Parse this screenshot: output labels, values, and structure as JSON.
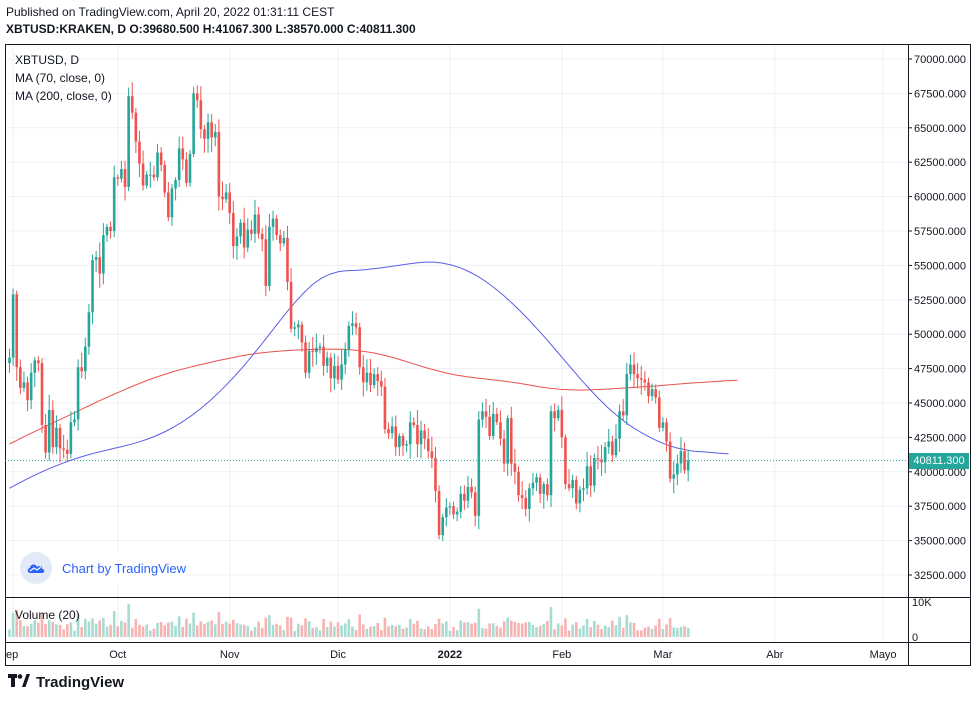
{
  "header": {
    "published": "Published on TradingView.com, April 20, 2022 01:31:11 CEST",
    "symbol": "XBTUSD:KRAKEN, D",
    "o_label": "O:",
    "o_value": "39680.500",
    "h_label": "H:",
    "h_value": "41067.300",
    "l_label": "L:",
    "l_value": "38570.000",
    "c_label": "C:",
    "c_value": "40811.300"
  },
  "legend": {
    "title": "XBTUSD, D",
    "ma70": "MA (70, close, 0)",
    "ma200": "MA (200, close, 0)",
    "volume": "Volume (20)"
  },
  "attribution": "Chart by TradingView",
  "footer_brand": "TradingView",
  "last_price_tag": "40811.300",
  "colors": {
    "up": "#26a69a",
    "down": "#ef5350",
    "ma70": "#5b5fe6",
    "ma200": "#e8534f",
    "last_line": "#26a69a"
  },
  "chart_data": {
    "type": "candlestick",
    "ylim": [
      31000,
      71000
    ],
    "y_ticks": [
      "70000.000",
      "67500.000",
      "65000.000",
      "62500.000",
      "60000.000",
      "57500.000",
      "55000.000",
      "52500.000",
      "50000.000",
      "47500.000",
      "45000.000",
      "42500.000",
      "40000.000",
      "37500.000",
      "35000.000",
      "32500.000"
    ],
    "y_tick_values": [
      70000,
      67500,
      65000,
      62500,
      60000,
      57500,
      55000,
      52500,
      50000,
      47500,
      45000,
      42500,
      40000,
      37500,
      35000,
      32500
    ],
    "x_ticks": [
      {
        "label": "ep",
        "day": 1,
        "bold": false
      },
      {
        "label": "Oct",
        "day": 30,
        "bold": false
      },
      {
        "label": "Nov",
        "day": 61,
        "bold": false
      },
      {
        "label": "Dic",
        "day": 91,
        "bold": false
      },
      {
        "label": "2022",
        "day": 122,
        "bold": true
      },
      {
        "label": "Feb",
        "day": 153,
        "bold": false
      },
      {
        "label": "Mar",
        "day": 181,
        "bold": false
      },
      {
        "label": "Abr",
        "day": 212,
        "bold": false
      },
      {
        "label": "Mayo",
        "day": 242,
        "bold": false
      }
    ],
    "volume_ticks": [
      "10K",
      "0"
    ],
    "volume_max": 10000,
    "last_price": 40811.3,
    "close": [
      48300,
      52900,
      47600,
      46100,
      46500,
      45200,
      47200,
      48100,
      47900,
      43400,
      41400,
      44500,
      41800,
      43200,
      41700,
      41600,
      41300,
      43600,
      43800,
      47600,
      47300,
      49100,
      51600,
      55400,
      55600,
      54400,
      57200,
      57800,
      57500,
      61400,
      61300,
      62000,
      60700,
      67300,
      66100,
      64000,
      62400,
      60800,
      61600,
      61600,
      61400,
      63200,
      62300,
      60300,
      58500,
      60600,
      61200,
      63500,
      62700,
      61000,
      63100,
      67500,
      67000,
      64900,
      64200,
      65400,
      64300,
      64700,
      60000,
      59800,
      60300,
      58800,
      56400,
      57100,
      58100,
      56300,
      57600,
      57300,
      58700,
      57300,
      56900,
      53500,
      57800,
      58400,
      57200,
      56600,
      57000,
      53800,
      50400,
      50500,
      50700,
      49400,
      47200,
      48800,
      48700,
      49000,
      49100,
      47700,
      48300,
      46800,
      47700,
      46700,
      47800,
      48900,
      50600,
      50800,
      50500,
      47600,
      46500,
      47200,
      46300,
      47100,
      46600,
      46200,
      43100,
      42800,
      43300,
      41800,
      42600,
      41900,
      42000,
      43600,
      43400,
      42000,
      43000,
      42400,
      41500,
      41000,
      38600,
      35400,
      36700,
      37400,
      37500,
      36900,
      37100,
      38400,
      37900,
      38900,
      38500,
      36800,
      43800,
      44400,
      44000,
      42600,
      44200,
      43600,
      42400,
      40600,
      43900,
      40600,
      40000,
      38300,
      38100,
      37300,
      38800,
      39200,
      39600,
      38400,
      39100,
      38300,
      44400,
      43900,
      44500,
      42500,
      39100,
      38800,
      39400,
      37700,
      38700,
      38800,
      40400,
      39000,
      41000,
      40900,
      40700,
      41800,
      42200,
      41200,
      42400,
      44400,
      44100,
      47100,
      47800,
      47100,
      46800,
      46700,
      46500,
      45500,
      46000,
      45400,
      43200,
      43600,
      42200,
      39500,
      39800,
      40600,
      41500,
      40100,
      40811
    ],
    "ma70_start_day": 0,
    "ma70": [
      38800,
      39140,
      39470,
      39780,
      40070,
      40340,
      40590,
      40820,
      41030,
      41220,
      41390,
      41540,
      41690,
      41840,
      42000,
      42180,
      42390,
      42640,
      42930,
      43270,
      43650,
      44080,
      44560,
      45090,
      45670,
      46290,
      46960,
      47670,
      48420,
      49200,
      50000,
      50810,
      51600,
      52350,
      53030,
      53620,
      54070,
      54370,
      54550,
      54620,
      54640,
      54680,
      54750,
      54830,
      54920,
      55010,
      55100,
      55180,
      55240,
      55240,
      55170,
      55030,
      54830,
      54560,
      54220,
      53820,
      53350,
      52830,
      52260,
      51650,
      51000,
      50320,
      49620,
      48890,
      48150,
      47410,
      46680,
      45980,
      45320,
      44700,
      44140,
      43640,
      43200,
      42820,
      42480,
      42180,
      41930,
      41740,
      41600,
      41500,
      41450,
      41400,
      41350,
      41300
    ],
    "ma200": [
      42020,
      42400,
      42770,
      43130,
      43490,
      43850,
      44210,
      44570,
      44930,
      45280,
      45620,
      45950,
      46270,
      46570,
      46850,
      47100,
      47330,
      47530,
      47720,
      47900,
      48070,
      48230,
      48390,
      48520,
      48630,
      48710,
      48770,
      48820,
      48860,
      48890,
      48910,
      48920,
      48900,
      48850,
      48760,
      48640,
      48480,
      48280,
      48050,
      47810,
      47580,
      47370,
      47180,
      47030,
      46910,
      46810,
      46730,
      46640,
      46540,
      46430,
      46310,
      46170,
      46070,
      45990,
      45950,
      45940,
      45960,
      45990,
      46030,
      46080,
      46130,
      46180,
      46230,
      46290,
      46350,
      46420,
      46470,
      46520,
      46570,
      46620,
      46660
    ]
  }
}
